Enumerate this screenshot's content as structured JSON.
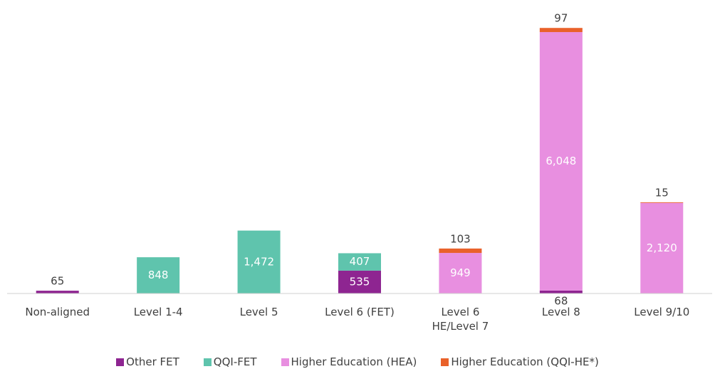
{
  "chart_data": {
    "type": "stacked_bar",
    "categories": [
      "Non-aligned",
      "Level 1-4",
      "Level 5",
      "Level 6 (FET)",
      "Level 6\nHE/Level 7",
      "Level 8",
      "Level 9/10"
    ],
    "series": [
      {
        "name": "Other FET",
        "color": "#8e2591",
        "values": [
          65,
          0,
          0,
          535,
          0,
          68,
          0
        ],
        "value_labels": [
          "65",
          null,
          null,
          "535",
          null,
          "68",
          null
        ]
      },
      {
        "name": "QQI-FET",
        "color": "#5fc4ad",
        "values": [
          0,
          848,
          1472,
          407,
          0,
          0,
          0
        ],
        "value_labels": [
          null,
          "848",
          "1,472",
          "407",
          null,
          null,
          null
        ]
      },
      {
        "name": "Higher Education (HEA)",
        "color": "#e88fe0",
        "values": [
          0,
          0,
          0,
          0,
          949,
          6048,
          2120
        ],
        "value_labels": [
          null,
          null,
          null,
          null,
          "949",
          "6,048",
          "2,120"
        ]
      },
      {
        "name": "Higher Education (QQI-HE*)",
        "color": "#e9612a",
        "values": [
          0,
          0,
          0,
          0,
          103,
          97,
          15
        ],
        "value_labels": [
          null,
          null,
          null,
          null,
          "103",
          "97",
          "15"
        ]
      }
    ],
    "ylim": [
      0,
      6300
    ]
  }
}
